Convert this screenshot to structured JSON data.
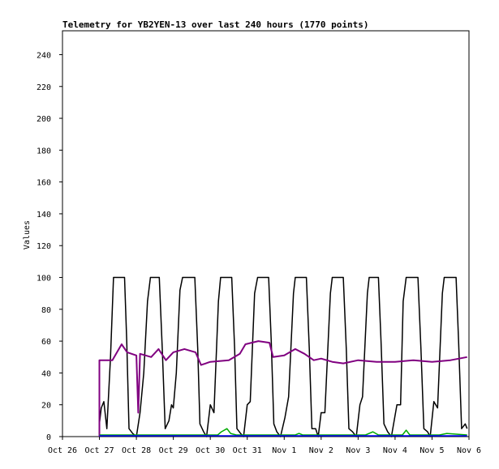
{
  "chart_data": {
    "type": "line",
    "title": "Telemetry for YB2YEN-13 over last 240 hours (1770 points)",
    "xlabel": "",
    "ylabel": "Values",
    "x_ticks": [
      "Oct 26",
      "Oct 27",
      "Oct 28",
      "Oct 29",
      "Oct 30",
      "Oct 31",
      "Nov 1",
      "Nov 2",
      "Nov 3",
      "Nov 4",
      "Nov 5",
      "Nov 6"
    ],
    "y_ticks": [
      0,
      20,
      40,
      60,
      80,
      100,
      120,
      140,
      160,
      180,
      200,
      220,
      240
    ],
    "xlim_days": [
      0,
      11
    ],
    "ylim": [
      0,
      255
    ],
    "grid": false,
    "legend": "none",
    "series": [
      {
        "color": "#000000",
        "points": [
          [
            1.0,
            8
          ],
          [
            1.05,
            18
          ],
          [
            1.12,
            22
          ],
          [
            1.2,
            5
          ],
          [
            1.3,
            50
          ],
          [
            1.38,
            100
          ],
          [
            1.68,
            100
          ],
          [
            1.74,
            60
          ],
          [
            1.8,
            5
          ],
          [
            1.9,
            2
          ],
          [
            2.0,
            0
          ],
          [
            2.1,
            15
          ],
          [
            2.2,
            40
          ],
          [
            2.3,
            85
          ],
          [
            2.38,
            100
          ],
          [
            2.62,
            100
          ],
          [
            2.7,
            55
          ],
          [
            2.78,
            5
          ],
          [
            2.88,
            10
          ],
          [
            2.95,
            20
          ],
          [
            3.0,
            18
          ],
          [
            3.08,
            40
          ],
          [
            3.18,
            92
          ],
          [
            3.25,
            100
          ],
          [
            3.58,
            100
          ],
          [
            3.66,
            55
          ],
          [
            3.72,
            8
          ],
          [
            3.82,
            3
          ],
          [
            3.9,
            0
          ],
          [
            4.0,
            20
          ],
          [
            4.1,
            15
          ],
          [
            4.22,
            85
          ],
          [
            4.28,
            100
          ],
          [
            4.58,
            100
          ],
          [
            4.66,
            55
          ],
          [
            4.72,
            5
          ],
          [
            4.82,
            2
          ],
          [
            4.9,
            0
          ],
          [
            5.0,
            20
          ],
          [
            5.08,
            22
          ],
          [
            5.2,
            90
          ],
          [
            5.28,
            100
          ],
          [
            5.58,
            100
          ],
          [
            5.65,
            60
          ],
          [
            5.72,
            8
          ],
          [
            5.8,
            3
          ],
          [
            5.9,
            0
          ],
          [
            6.02,
            12
          ],
          [
            6.12,
            25
          ],
          [
            6.25,
            90
          ],
          [
            6.3,
            100
          ],
          [
            6.6,
            100
          ],
          [
            6.68,
            55
          ],
          [
            6.75,
            5
          ],
          [
            6.85,
            5
          ],
          [
            6.92,
            0
          ],
          [
            7.0,
            15
          ],
          [
            7.1,
            15
          ],
          [
            7.25,
            90
          ],
          [
            7.3,
            100
          ],
          [
            7.6,
            100
          ],
          [
            7.68,
            55
          ],
          [
            7.75,
            5
          ],
          [
            7.85,
            3
          ],
          [
            7.95,
            0
          ],
          [
            8.05,
            20
          ],
          [
            8.12,
            25
          ],
          [
            8.25,
            90
          ],
          [
            8.3,
            100
          ],
          [
            8.55,
            100
          ],
          [
            8.62,
            60
          ],
          [
            8.7,
            8
          ],
          [
            8.8,
            3
          ],
          [
            8.9,
            0
          ],
          [
            9.05,
            20
          ],
          [
            9.15,
            20
          ],
          [
            9.22,
            85
          ],
          [
            9.3,
            100
          ],
          [
            9.62,
            100
          ],
          [
            9.7,
            55
          ],
          [
            9.78,
            5
          ],
          [
            9.88,
            3
          ],
          [
            9.95,
            0
          ],
          [
            10.05,
            22
          ],
          [
            10.15,
            18
          ],
          [
            10.28,
            90
          ],
          [
            10.33,
            100
          ],
          [
            10.65,
            100
          ],
          [
            10.72,
            60
          ],
          [
            10.8,
            5
          ],
          [
            10.9,
            8
          ],
          [
            10.95,
            5
          ]
        ]
      },
      {
        "color": "#800080",
        "points": [
          [
            1.0,
            0
          ],
          [
            1.0,
            48
          ],
          [
            1.35,
            48
          ],
          [
            1.6,
            58
          ],
          [
            1.75,
            53
          ],
          [
            2.0,
            51
          ],
          [
            2.05,
            15
          ],
          [
            2.1,
            52
          ],
          [
            2.4,
            50
          ],
          [
            2.6,
            55
          ],
          [
            2.8,
            48
          ],
          [
            3.0,
            53
          ],
          [
            3.3,
            55
          ],
          [
            3.6,
            53
          ],
          [
            3.75,
            45
          ],
          [
            4.0,
            47
          ],
          [
            4.5,
            48
          ],
          [
            4.8,
            52
          ],
          [
            4.95,
            58
          ],
          [
            5.3,
            60
          ],
          [
            5.6,
            59
          ],
          [
            5.7,
            50
          ],
          [
            6.0,
            51
          ],
          [
            6.3,
            55
          ],
          [
            6.55,
            52
          ],
          [
            6.8,
            48
          ],
          [
            7.0,
            49
          ],
          [
            7.3,
            47
          ],
          [
            7.6,
            46
          ],
          [
            8.0,
            48
          ],
          [
            8.5,
            47
          ],
          [
            9.0,
            47
          ],
          [
            9.5,
            48
          ],
          [
            10.0,
            47
          ],
          [
            10.5,
            48
          ],
          [
            10.95,
            50
          ]
        ]
      },
      {
        "color": "#00aa00",
        "points": [
          [
            1.0,
            1
          ],
          [
            4.2,
            1
          ],
          [
            4.3,
            3
          ],
          [
            4.45,
            5
          ],
          [
            4.55,
            2
          ],
          [
            4.7,
            1
          ],
          [
            6.3,
            1
          ],
          [
            6.4,
            2
          ],
          [
            6.5,
            1
          ],
          [
            7.5,
            1
          ],
          [
            8.2,
            1
          ],
          [
            8.4,
            3
          ],
          [
            8.55,
            1
          ],
          [
            9.2,
            1
          ],
          [
            9.3,
            4
          ],
          [
            9.4,
            1
          ],
          [
            10.2,
            1
          ],
          [
            10.4,
            2
          ],
          [
            10.95,
            1
          ]
        ]
      },
      {
        "color": "#0000ff",
        "points": [
          [
            1.0,
            0.5
          ],
          [
            10.95,
            0.5
          ]
        ]
      }
    ]
  }
}
